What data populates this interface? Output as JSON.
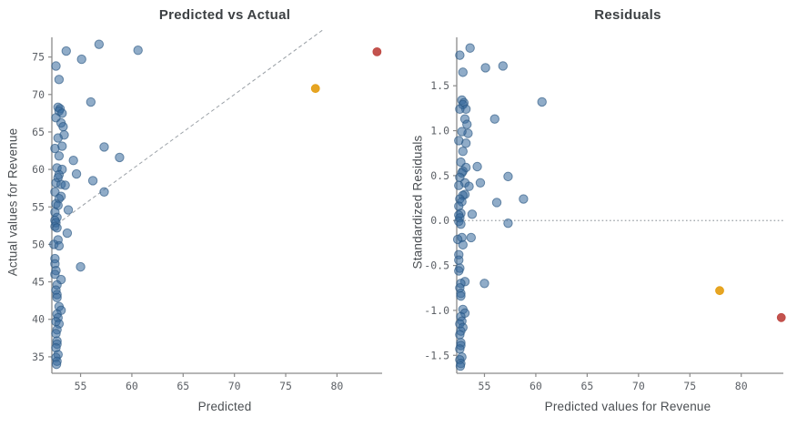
{
  "figure": {
    "background": "#ffffff"
  },
  "colors": {
    "point_blue": "#35689B",
    "point_blue_edge": "#2B5783",
    "outlier_orange": "#E5A017",
    "outlier_red": "#C04A45",
    "axis": "#8A8A8A",
    "tick_label": "#5C6066",
    "title_text": "#3C4043",
    "axis_label_text": "#4A4E52",
    "ref_line": "#9AA0A6"
  },
  "chart_data": {
    "type": "scatter",
    "columns": [
      "pred",
      "actual",
      "resid"
    ],
    "charts": [
      {
        "title": "Predicted vs Actual",
        "xlabel": "Predicted",
        "ylabel": "Actual values for Revenue",
        "x_field": "pred",
        "y_field": "actual",
        "xlim": [
          52.2,
          84.4
        ],
        "ylim": [
          32.8,
          78.6
        ],
        "xticks": [
          "55",
          "60",
          "65",
          "70",
          "75",
          "80"
        ],
        "yticks": [
          "35",
          "40",
          "45",
          "50",
          "55",
          "60",
          "65",
          "70",
          "75"
        ],
        "ref_line": {
          "kind": "identity",
          "dash": "dashed"
        },
        "grid": false,
        "legend": false
      },
      {
        "title": "Residuals",
        "xlabel": "Predicted values for Revenue",
        "ylabel": "Standardized Residuals",
        "x_field": "pred",
        "y_field": "resid",
        "xlim": [
          52.3,
          84.1
        ],
        "ylim": [
          -1.7,
          2.12
        ],
        "xticks": [
          "55",
          "60",
          "65",
          "70",
          "75",
          "80"
        ],
        "yticks": [
          "-1.5",
          "-1.0",
          "-0.5",
          "0.0",
          "0.5",
          "1.0",
          "1.5"
        ],
        "ref_line": {
          "kind": "hline",
          "y": 0,
          "dash": "dotted"
        },
        "grid": false,
        "legend": false
      }
    ],
    "points": [
      [
        56.8,
        76.7,
        1.72
      ],
      [
        60.6,
        75.9,
        1.32
      ],
      [
        53.6,
        75.8,
        1.92
      ],
      [
        55.1,
        74.7,
        1.7
      ],
      [
        52.6,
        73.8,
        1.84
      ],
      [
        52.9,
        72.0,
        1.65
      ],
      [
        56.0,
        69.0,
        1.13
      ],
      [
        52.8,
        68.3,
        1.34
      ],
      [
        53.0,
        68.1,
        1.31
      ],
      [
        52.9,
        67.8,
        1.29
      ],
      [
        53.2,
        67.5,
        1.24
      ],
      [
        52.6,
        66.9,
        1.24
      ],
      [
        53.1,
        66.2,
        1.13
      ],
      [
        53.3,
        65.7,
        1.07
      ],
      [
        53.4,
        64.6,
        0.97
      ],
      [
        52.8,
        64.2,
        0.99
      ],
      [
        53.2,
        63.1,
        0.86
      ],
      [
        57.3,
        63.0,
        0.49
      ],
      [
        52.5,
        62.8,
        0.89
      ],
      [
        52.9,
        61.8,
        0.77
      ],
      [
        58.8,
        61.6,
        0.24
      ],
      [
        54.3,
        61.2,
        0.6
      ],
      [
        52.7,
        60.2,
        0.65
      ],
      [
        53.2,
        60.0,
        0.59
      ],
      [
        54.6,
        59.4,
        0.42
      ],
      [
        52.9,
        59.3,
        0.55
      ],
      [
        56.2,
        58.5,
        0.2
      ],
      [
        52.8,
        58.9,
        0.53
      ],
      [
        52.6,
        58.2,
        0.48
      ],
      [
        53.1,
        58.0,
        0.42
      ],
      [
        53.5,
        57.9,
        0.38
      ],
      [
        52.5,
        57.0,
        0.39
      ],
      [
        57.3,
        57.0,
        -0.03
      ],
      [
        53.1,
        56.4,
        0.29
      ],
      [
        52.9,
        56.1,
        0.28
      ],
      [
        52.6,
        55.4,
        0.24
      ],
      [
        52.8,
        55.2,
        0.21
      ],
      [
        53.8,
        54.6,
        0.07
      ],
      [
        52.5,
        54.3,
        0.16
      ],
      [
        52.7,
        53.6,
        0.08
      ],
      [
        52.5,
        53.2,
        0.06
      ],
      [
        52.6,
        52.9,
        0.03
      ],
      [
        52.5,
        52.4,
        -0.01
      ],
      [
        52.7,
        52.2,
        -0.04
      ],
      [
        53.7,
        51.5,
        -0.19
      ],
      [
        52.8,
        50.6,
        -0.19
      ],
      [
        52.4,
        50.0,
        -0.21
      ],
      [
        52.9,
        49.8,
        -0.27
      ],
      [
        52.5,
        48.1,
        -0.38
      ],
      [
        52.5,
        47.4,
        -0.44
      ],
      [
        55.0,
        47.0,
        -0.7
      ],
      [
        52.6,
        46.5,
        -0.53
      ],
      [
        52.5,
        46.0,
        -0.56
      ],
      [
        53.1,
        45.3,
        -0.68
      ],
      [
        52.7,
        44.6,
        -0.7
      ],
      [
        52.6,
        43.9,
        -0.75
      ],
      [
        52.7,
        43.3,
        -0.81
      ],
      [
        52.7,
        42.9,
        -0.84
      ],
      [
        52.9,
        41.7,
        -0.99
      ],
      [
        53.1,
        41.2,
        -1.03
      ],
      [
        52.7,
        40.7,
        -1.07
      ],
      [
        52.8,
        40.2,
        -1.12
      ],
      [
        52.6,
        39.7,
        -1.15
      ],
      [
        52.9,
        39.4,
        -1.19
      ],
      [
        52.7,
        38.6,
        -1.23
      ],
      [
        52.6,
        38.1,
        -1.27
      ],
      [
        52.7,
        37.1,
        -1.36
      ],
      [
        52.7,
        36.7,
        -1.39
      ],
      [
        52.6,
        36.2,
        -1.43
      ],
      [
        52.8,
        35.3,
        -1.52
      ],
      [
        52.6,
        34.9,
        -1.55
      ],
      [
        52.7,
        34.4,
        -1.59
      ],
      [
        52.65,
        34.0,
        -1.62
      ]
    ],
    "outliers": [
      {
        "name": "outlier-orange",
        "pred": 77.9,
        "actual": 70.8,
        "resid": -0.78,
        "color_key": "outlier_orange"
      },
      {
        "name": "outlier-red",
        "pred": 83.9,
        "actual": 75.7,
        "resid": -1.08,
        "color_key": "outlier_red"
      }
    ]
  }
}
